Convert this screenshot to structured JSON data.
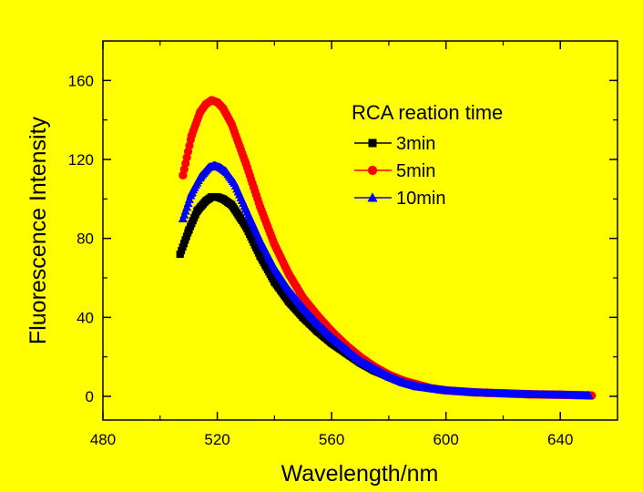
{
  "chart_data": {
    "type": "scatter",
    "title": "",
    "xlabel": "Wavelength/nm",
    "ylabel": "Fluorescence Intensity",
    "xlim": [
      480,
      660
    ],
    "ylim": [
      -12,
      180
    ],
    "xticks": [
      480,
      520,
      560,
      600,
      640
    ],
    "yticks": [
      0,
      40,
      80,
      120,
      160
    ],
    "grid": false,
    "legend": {
      "title": "RCA reation time",
      "placement": "top-right"
    },
    "series": [
      {
        "name": "3min",
        "color": "#000000",
        "marker": "square",
        "x": [
          507,
          510,
          513,
          516,
          518,
          520,
          522,
          525,
          530,
          535,
          540,
          545,
          550,
          555,
          560,
          565,
          570,
          575,
          580,
          585,
          590,
          595,
          600,
          610,
          620,
          630,
          640,
          650
        ],
        "y": [
          72,
          84,
          94,
          99,
          101,
          101,
          100,
          97,
          86,
          71,
          58,
          48,
          40,
          33,
          27,
          22,
          17,
          13,
          10,
          7,
          5,
          4,
          3,
          2,
          1.5,
          1,
          0.8,
          0.5
        ]
      },
      {
        "name": "5min",
        "color": "#ff0000",
        "marker": "circle",
        "x": [
          508,
          511,
          514,
          516,
          518,
          520,
          522,
          525,
          530,
          535,
          540,
          545,
          550,
          555,
          560,
          565,
          570,
          575,
          580,
          585,
          590,
          595,
          600,
          610,
          620,
          630,
          640,
          651
        ],
        "y": [
          112,
          132,
          144,
          148,
          150,
          149,
          146,
          138,
          118,
          96,
          77,
          62,
          50,
          41,
          33,
          26,
          20,
          15,
          11,
          8,
          6,
          4,
          3,
          2,
          1.5,
          1,
          0.8,
          0.4
        ]
      },
      {
        "name": "10min",
        "color": "#0000ff",
        "marker": "triangle",
        "x": [
          508,
          511,
          514,
          517,
          519,
          521,
          523,
          526,
          530,
          535,
          540,
          545,
          550,
          555,
          560,
          565,
          570,
          575,
          580,
          585,
          590,
          595,
          600,
          610,
          620,
          630,
          640,
          650
        ],
        "y": [
          90,
          103,
          111,
          116,
          117,
          116,
          114,
          108,
          95,
          79,
          65,
          54,
          45,
          37,
          30,
          24,
          18,
          14,
          10,
          7,
          5,
          4,
          3,
          2,
          1.5,
          1,
          0.8,
          0.5
        ]
      }
    ]
  }
}
